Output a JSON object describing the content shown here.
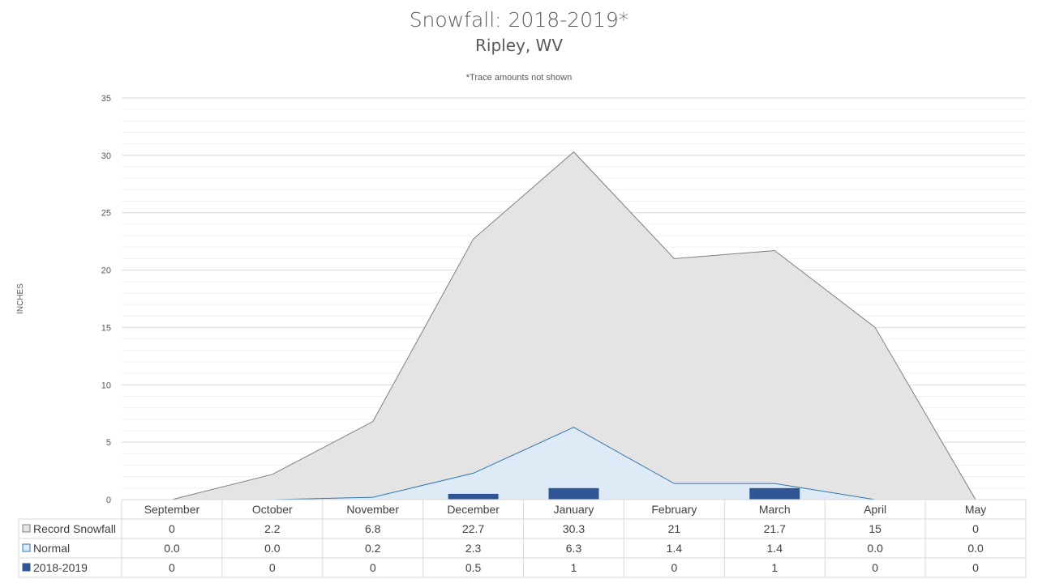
{
  "chart_data": {
    "type": "area",
    "title": "Snowfall: 2018-2019*",
    "subtitle": "Ripley, WV",
    "note": "*Trace amounts not shown",
    "ylabel": "INCHES",
    "xlabel": "",
    "ylim": [
      0,
      35
    ],
    "y_ticks": [
      0,
      5,
      10,
      15,
      20,
      25,
      30,
      35
    ],
    "grid": true,
    "legend": "table-bottom",
    "categories": [
      "September",
      "October",
      "November",
      "December",
      "January",
      "February",
      "March",
      "April",
      "May"
    ],
    "series": [
      {
        "name": "Record Snowfall",
        "kind": "area",
        "values": [
          0,
          2.2,
          6.8,
          22.7,
          30.3,
          21,
          21.7,
          15,
          0
        ],
        "labels": [
          "0",
          "2.2",
          "6.8",
          "22.7",
          "30.3",
          "21",
          "21.7",
          "15",
          "0"
        ],
        "fill": "#e4e4e4",
        "stroke": "#7f7f7f"
      },
      {
        "name": "Normal",
        "kind": "area",
        "values": [
          0.0,
          0.0,
          0.2,
          2.3,
          6.3,
          1.4,
          1.4,
          0.0,
          0.0
        ],
        "labels": [
          "0.0",
          "0.0",
          "0.2",
          "2.3",
          "6.3",
          "1.4",
          "1.4",
          "0.0",
          "0.0"
        ],
        "fill": "#deebf7",
        "stroke": "#2e75b6"
      },
      {
        "name": "2018-2019",
        "kind": "bar",
        "values": [
          0,
          0,
          0,
          0.5,
          1,
          0,
          1,
          0,
          0
        ],
        "labels": [
          "0",
          "0",
          "0",
          "0.5",
          "1",
          "0",
          "1",
          "0",
          "0"
        ],
        "fill": "#2f5597",
        "stroke": "#2f5597"
      }
    ]
  }
}
